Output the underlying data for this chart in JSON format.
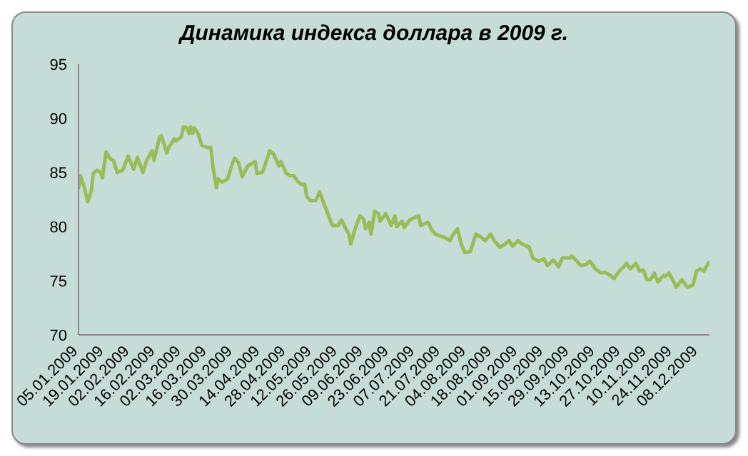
{
  "chart_data": {
    "type": "line",
    "title": "Динамика индекса доллара в 2009 г.",
    "x": [
      "2009-01-05",
      "2009-01-06",
      "2009-01-08",
      "2009-01-10",
      "2009-01-12",
      "2009-01-13",
      "2009-01-15",
      "2009-01-17",
      "2009-01-18",
      "2009-01-20",
      "2009-01-22",
      "2009-01-24",
      "2009-01-26",
      "2009-01-29",
      "2009-02-01",
      "2009-02-04",
      "2009-02-06",
      "2009-02-09",
      "2009-02-11",
      "2009-02-14",
      "2009-02-15",
      "2009-02-18",
      "2009-02-19",
      "2009-02-22",
      "2009-02-23",
      "2009-02-26",
      "2009-02-27",
      "2009-03-02",
      "2009-03-03",
      "2009-03-05",
      "2009-03-06",
      "2009-03-07",
      "2009-03-08",
      "2009-03-09",
      "2009-03-11",
      "2009-03-13",
      "2009-03-16",
      "2009-03-18",
      "2009-03-19",
      "2009-03-21",
      "2009-03-22",
      "2009-03-24",
      "2009-03-27",
      "2009-03-30",
      "2009-03-31",
      "2009-04-02",
      "2009-04-04",
      "2009-04-07",
      "2009-04-11",
      "2009-04-12",
      "2009-04-15",
      "2009-04-17",
      "2009-04-19",
      "2009-04-21",
      "2009-04-24",
      "2009-04-25",
      "2009-04-28",
      "2009-04-30",
      "2009-05-02",
      "2009-05-04",
      "2009-05-06",
      "2009-05-08",
      "2009-05-09",
      "2009-05-11",
      "2009-05-14",
      "2009-05-16",
      "2009-05-18",
      "2009-05-21",
      "2009-05-23",
      "2009-05-26",
      "2009-05-28",
      "2009-05-30",
      "2009-06-01",
      "2009-06-02",
      "2009-06-04",
      "2009-06-07",
      "2009-06-09",
      "2009-06-10",
      "2009-06-12",
      "2009-06-13",
      "2009-06-15",
      "2009-06-17",
      "2009-06-18",
      "2009-06-21",
      "2009-06-24",
      "2009-06-26",
      "2009-06-27",
      "2009-06-30",
      "2009-07-01",
      "2009-07-04",
      "2009-07-09",
      "2009-07-10",
      "2009-07-14",
      "2009-07-16",
      "2009-07-18",
      "2009-07-21",
      "2009-07-23",
      "2009-07-26",
      "2009-07-27",
      "2009-07-30",
      "2009-08-01",
      "2009-08-03",
      "2009-08-06",
      "2009-08-09",
      "2009-08-12",
      "2009-08-14",
      "2009-08-17",
      "2009-08-19",
      "2009-08-22",
      "2009-08-25",
      "2009-08-27",
      "2009-08-29",
      "2009-09-01",
      "2009-09-03",
      "2009-09-07",
      "2009-09-09",
      "2009-09-12",
      "2009-09-15",
      "2009-09-17",
      "2009-09-20",
      "2009-09-23",
      "2009-09-25",
      "2009-09-29",
      "2009-09-30",
      "2009-10-03",
      "2009-10-05",
      "2009-10-08",
      "2009-10-10",
      "2009-10-13",
      "2009-10-16",
      "2009-10-18",
      "2009-10-21",
      "2009-10-23",
      "2009-10-26",
      "2009-10-29",
      "2009-10-30",
      "2009-11-01",
      "2009-11-04",
      "2009-11-06",
      "2009-11-08",
      "2009-11-10",
      "2009-11-12",
      "2009-11-14",
      "2009-11-16",
      "2009-11-19",
      "2009-11-20",
      "2009-11-22",
      "2009-11-24",
      "2009-11-26",
      "2009-11-29",
      "2009-12-02",
      "2009-12-05",
      "2009-12-07",
      "2009-12-09",
      "2009-12-11",
      "2009-12-14"
    ],
    "series": [
      {
        "color": "#9bbb59",
        "values": [
          83.5,
          84.7,
          83.7,
          82.3,
          83.3,
          84.9,
          85.2,
          85.0,
          84.5,
          86.9,
          86.3,
          86.1,
          85.0,
          85.2,
          86.5,
          85.3,
          86.4,
          85.0,
          86.1,
          87.0,
          86.1,
          88.2,
          88.4,
          86.8,
          87.3,
          88.1,
          87.9,
          88.3,
          89.2,
          89.1,
          88.6,
          89.2,
          88.6,
          89.1,
          88.6,
          87.5,
          87.3,
          87.3,
          85.6,
          83.6,
          84.4,
          84.1,
          84.4,
          86.0,
          86.3,
          85.9,
          84.6,
          85.6,
          86.0,
          84.9,
          85.0,
          86.0,
          87.0,
          86.7,
          85.6,
          86.0,
          84.9,
          84.7,
          84.7,
          84.2,
          83.9,
          83.9,
          82.8,
          82.4,
          82.4,
          83.2,
          82.3,
          81.0,
          80.1,
          80.1,
          80.6,
          79.9,
          79.3,
          78.4,
          79.6,
          81.0,
          80.7,
          79.8,
          80.4,
          79.3,
          81.4,
          81.2,
          80.5,
          81.2,
          80.1,
          81.0,
          80.0,
          80.5,
          79.9,
          80.6,
          81.0,
          80.1,
          80.4,
          79.7,
          79.3,
          79.1,
          79.0,
          78.7,
          79.1,
          79.8,
          78.4,
          77.6,
          77.7,
          79.3,
          79.0,
          78.7,
          79.3,
          78.7,
          78.1,
          78.4,
          78.7,
          78.2,
          78.7,
          78.4,
          78.1,
          77.1,
          76.8,
          77.0,
          76.4,
          76.9,
          76.3,
          77.1,
          77.1,
          77.3,
          76.8,
          76.4,
          76.5,
          76.8,
          76.1,
          75.7,
          75.8,
          75.5,
          75.2,
          75.9,
          76.4,
          76.6,
          76.1,
          76.6,
          75.9,
          76.0,
          75.1,
          75.1,
          75.7,
          74.9,
          75.5,
          75.4,
          75.7,
          75.1,
          74.4,
          75.1,
          74.4,
          74.6,
          75.9,
          76.1,
          75.9,
          76.8
        ]
      }
    ],
    "xlim": [
      "2009-01-05",
      "2009-12-14"
    ],
    "xticks": [
      {
        "value": "2009-01-05",
        "label": "05.01.2009"
      },
      {
        "value": "2009-01-19",
        "label": "19.01.2009"
      },
      {
        "value": "2009-02-02",
        "label": "02.02.2009"
      },
      {
        "value": "2009-02-16",
        "label": "16.02.2009"
      },
      {
        "value": "2009-03-02",
        "label": "02.03.2009"
      },
      {
        "value": "2009-03-16",
        "label": "16.03.2009"
      },
      {
        "value": "2009-03-30",
        "label": "30.03.2009"
      },
      {
        "value": "2009-04-14",
        "label": "14.04.2009"
      },
      {
        "value": "2009-04-28",
        "label": "28.04.2009"
      },
      {
        "value": "2009-05-12",
        "label": "12.05.2009"
      },
      {
        "value": "2009-05-26",
        "label": "26.05.2009"
      },
      {
        "value": "2009-06-09",
        "label": "09.06.2009"
      },
      {
        "value": "2009-06-23",
        "label": "23.06.2009"
      },
      {
        "value": "2009-07-07",
        "label": "07.07.2009"
      },
      {
        "value": "2009-07-21",
        "label": "21.07.2009"
      },
      {
        "value": "2009-08-04",
        "label": "04.08.2009"
      },
      {
        "value": "2009-08-18",
        "label": "18.08.2009"
      },
      {
        "value": "2009-09-01",
        "label": "01.09.2009"
      },
      {
        "value": "2009-09-15",
        "label": "15.09.2009"
      },
      {
        "value": "2009-09-29",
        "label": "29.09.2009"
      },
      {
        "value": "2009-10-13",
        "label": "13.10.2009"
      },
      {
        "value": "2009-10-27",
        "label": "27.10.2009"
      },
      {
        "value": "2009-11-10",
        "label": "10.11.2009"
      },
      {
        "value": "2009-11-24",
        "label": "24.11.2009"
      },
      {
        "value": "2009-12-08",
        "label": "08.12.2009"
      }
    ],
    "ylim": [
      70,
      95
    ],
    "yticks": [
      70,
      75,
      80,
      85,
      90,
      95
    ],
    "marker": "none",
    "line_style": "solid"
  }
}
